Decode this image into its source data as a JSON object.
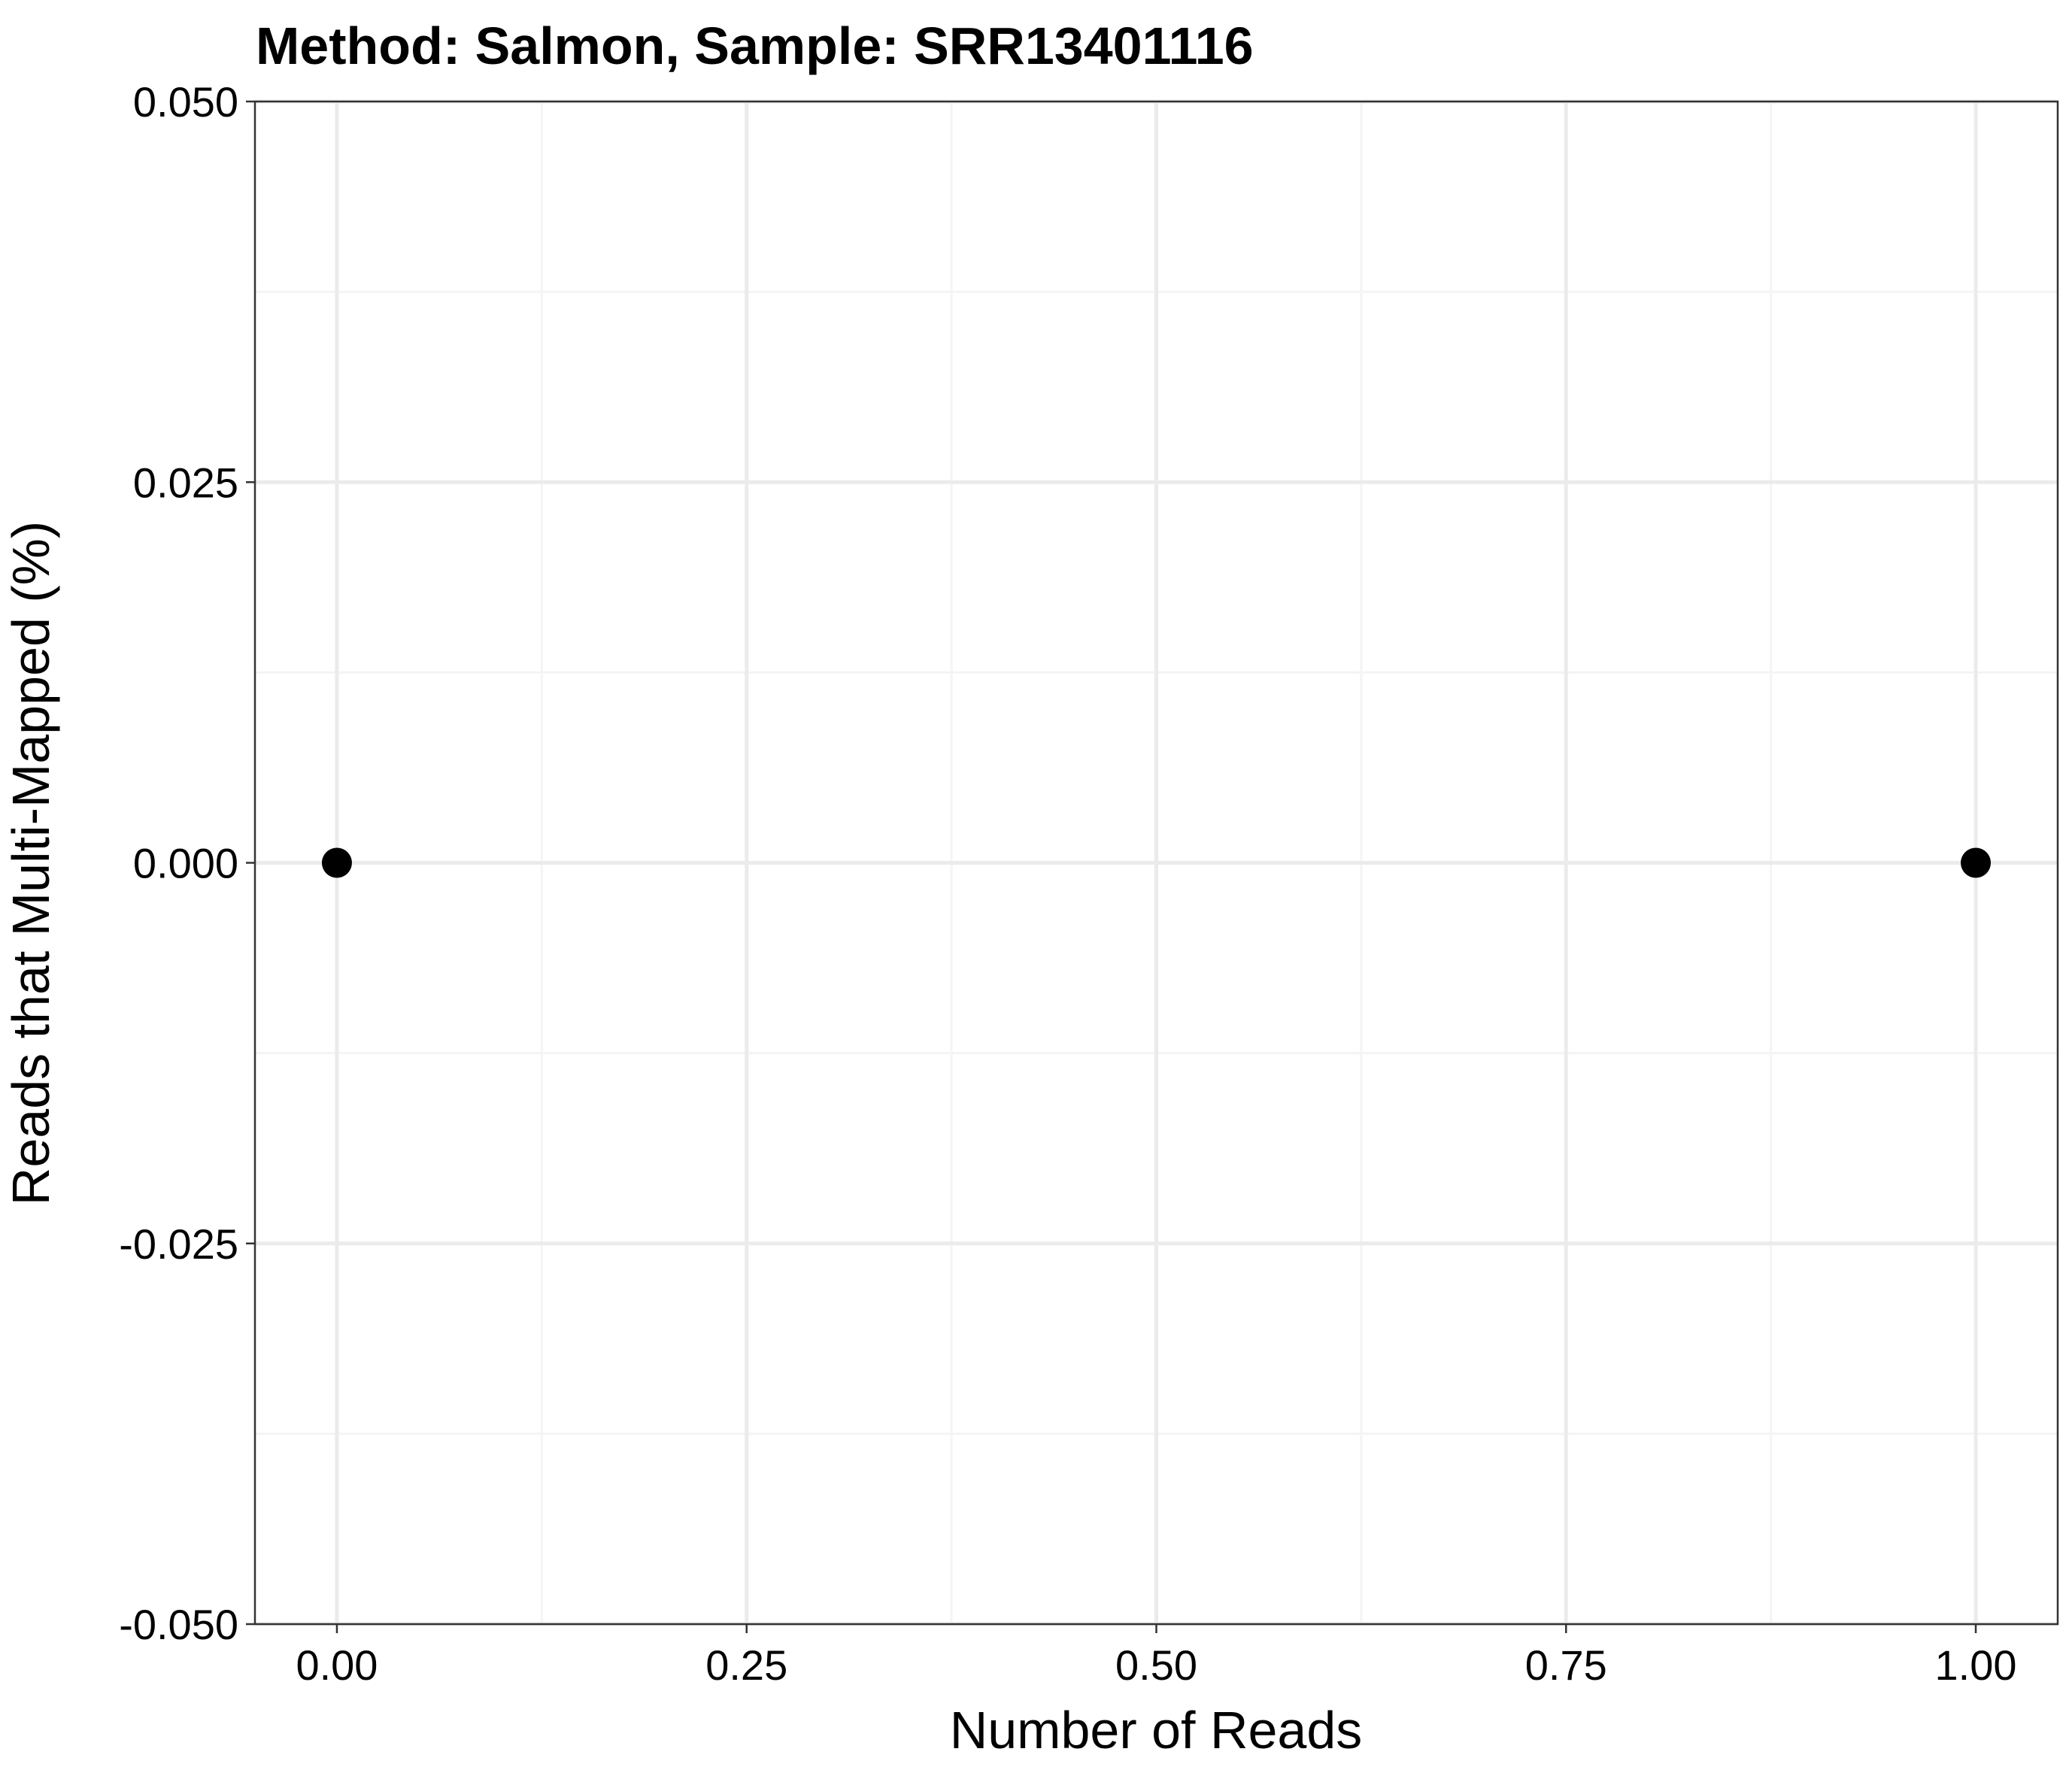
{
  "chart_data": {
    "type": "scatter",
    "title": "Method: Salmon, Sample: SRR13401116",
    "xlabel": "Number of Reads",
    "ylabel": "Reads that Multi-Mapped (%)",
    "xlim": [
      -0.05,
      1.05
    ],
    "ylim": [
      -0.05,
      0.05
    ],
    "x_ticks": [
      0,
      0.25,
      0.5,
      0.75,
      1
    ],
    "x_tick_labels": [
      "0.00",
      "0.25",
      "0.50",
      "0.75",
      "1.00"
    ],
    "x_minor_ticks": [
      0.125,
      0.375,
      0.625,
      0.875
    ],
    "y_ticks": [
      -0.05,
      -0.025,
      0,
      0.025,
      0.05
    ],
    "y_tick_labels": [
      "-0.050",
      "-0.025",
      "0.000",
      "0.025",
      "0.050"
    ],
    "y_minor_ticks": [
      -0.0375,
      -0.0125,
      0.0125,
      0.0375
    ],
    "grid": true,
    "points": [
      {
        "x": 0,
        "y": 0
      },
      {
        "x": 1,
        "y": 0
      }
    ],
    "colors": {
      "point": "#000000",
      "grid_major": "#ebebeb",
      "grid_minor": "#f4f4f4",
      "panel_border": "#333333",
      "background": "#ffffff"
    }
  }
}
